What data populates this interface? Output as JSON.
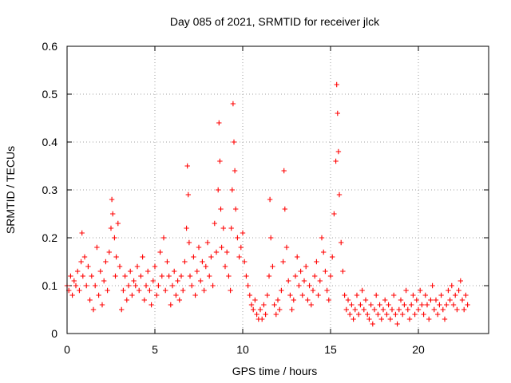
{
  "chart_data": {
    "type": "scatter",
    "title": "Day 085 of 2021, SRMTID for receiver jlck",
    "xlabel": "GPS time / hours",
    "ylabel": "SRMTID / TECUs",
    "xlim": [
      0,
      24
    ],
    "ylim": [
      0,
      0.6
    ],
    "xticks": [
      0,
      5,
      10,
      15,
      20
    ],
    "xtick_labels": [
      "0",
      "5",
      "10",
      "15",
      "20"
    ],
    "yticks": [
      0,
      0.1,
      0.2,
      0.3,
      0.4,
      0.5,
      0.6
    ],
    "ytick_labels": [
      "0",
      "0.1",
      "0.2",
      "0.3",
      "0.4",
      "0.5",
      "0.6"
    ],
    "grid": true,
    "marker": "+",
    "color": "#ff0000",
    "series": [
      {
        "name": "SRMTID",
        "points": [
          [
            0.0,
            0.1
          ],
          [
            0.1,
            0.09
          ],
          [
            0.2,
            0.12
          ],
          [
            0.3,
            0.08
          ],
          [
            0.4,
            0.11
          ],
          [
            0.5,
            0.1
          ],
          [
            0.6,
            0.13
          ],
          [
            0.7,
            0.09
          ],
          [
            0.8,
            0.15
          ],
          [
            0.85,
            0.21
          ],
          [
            0.9,
            0.12
          ],
          [
            1.0,
            0.16
          ],
          [
            1.1,
            0.1
          ],
          [
            1.2,
            0.14
          ],
          [
            1.3,
            0.07
          ],
          [
            1.4,
            0.12
          ],
          [
            1.5,
            0.05
          ],
          [
            1.6,
            0.1
          ],
          [
            1.7,
            0.18
          ],
          [
            1.8,
            0.08
          ],
          [
            1.9,
            0.13
          ],
          [
            2.0,
            0.06
          ],
          [
            2.1,
            0.11
          ],
          [
            2.2,
            0.15
          ],
          [
            2.3,
            0.09
          ],
          [
            2.4,
            0.17
          ],
          [
            2.5,
            0.22
          ],
          [
            2.55,
            0.28
          ],
          [
            2.6,
            0.25
          ],
          [
            2.7,
            0.2
          ],
          [
            2.75,
            0.12
          ],
          [
            2.8,
            0.16
          ],
          [
            2.9,
            0.23
          ],
          [
            3.0,
            0.14
          ],
          [
            3.1,
            0.05
          ],
          [
            3.2,
            0.09
          ],
          [
            3.3,
            0.12
          ],
          [
            3.4,
            0.07
          ],
          [
            3.5,
            0.1
          ],
          [
            3.6,
            0.13
          ],
          [
            3.7,
            0.08
          ],
          [
            3.8,
            0.11
          ],
          [
            3.9,
            0.1
          ],
          [
            4.0,
            0.14
          ],
          [
            4.1,
            0.09
          ],
          [
            4.2,
            0.12
          ],
          [
            4.3,
            0.16
          ],
          [
            4.4,
            0.07
          ],
          [
            4.5,
            0.1
          ],
          [
            4.6,
            0.13
          ],
          [
            4.7,
            0.09
          ],
          [
            4.8,
            0.06
          ],
          [
            4.9,
            0.11
          ],
          [
            5.0,
            0.14
          ],
          [
            5.1,
            0.08
          ],
          [
            5.2,
            0.1
          ],
          [
            5.3,
            0.17
          ],
          [
            5.4,
            0.12
          ],
          [
            5.5,
            0.2
          ],
          [
            5.6,
            0.09
          ],
          [
            5.7,
            0.15
          ],
          [
            5.8,
            0.12
          ],
          [
            5.9,
            0.06
          ],
          [
            6.0,
            0.1
          ],
          [
            6.1,
            0.13
          ],
          [
            6.2,
            0.08
          ],
          [
            6.3,
            0.11
          ],
          [
            6.4,
            0.07
          ],
          [
            6.5,
            0.12
          ],
          [
            6.6,
            0.09
          ],
          [
            6.7,
            0.15
          ],
          [
            6.8,
            0.22
          ],
          [
            6.85,
            0.35
          ],
          [
            6.9,
            0.29
          ],
          [
            6.95,
            0.19
          ],
          [
            7.0,
            0.12
          ],
          [
            7.1,
            0.1
          ],
          [
            7.2,
            0.16
          ],
          [
            7.3,
            0.08
          ],
          [
            7.4,
            0.13
          ],
          [
            7.5,
            0.18
          ],
          [
            7.6,
            0.11
          ],
          [
            7.7,
            0.15
          ],
          [
            7.8,
            0.09
          ],
          [
            7.9,
            0.14
          ],
          [
            8.0,
            0.19
          ],
          [
            8.1,
            0.12
          ],
          [
            8.2,
            0.16
          ],
          [
            8.3,
            0.1
          ],
          [
            8.4,
            0.23
          ],
          [
            8.5,
            0.17
          ],
          [
            8.6,
            0.3
          ],
          [
            8.65,
            0.44
          ],
          [
            8.7,
            0.36
          ],
          [
            8.75,
            0.26
          ],
          [
            8.8,
            0.18
          ],
          [
            8.9,
            0.22
          ],
          [
            9.0,
            0.14
          ],
          [
            9.1,
            0.17
          ],
          [
            9.2,
            0.12
          ],
          [
            9.3,
            0.09
          ],
          [
            9.35,
            0.22
          ],
          [
            9.4,
            0.3
          ],
          [
            9.45,
            0.48
          ],
          [
            9.5,
            0.4
          ],
          [
            9.55,
            0.34
          ],
          [
            9.6,
            0.26
          ],
          [
            9.7,
            0.2
          ],
          [
            9.8,
            0.16
          ],
          [
            9.9,
            0.18
          ],
          [
            10.0,
            0.21
          ],
          [
            10.1,
            0.15
          ],
          [
            10.2,
            0.12
          ],
          [
            10.3,
            0.1
          ],
          [
            10.4,
            0.08
          ],
          [
            10.5,
            0.06
          ],
          [
            10.6,
            0.05
          ],
          [
            10.7,
            0.07
          ],
          [
            10.8,
            0.04
          ],
          [
            10.9,
            0.03
          ],
          [
            11.0,
            0.05
          ],
          [
            11.1,
            0.03
          ],
          [
            11.2,
            0.06
          ],
          [
            11.3,
            0.04
          ],
          [
            11.4,
            0.08
          ],
          [
            11.5,
            0.12
          ],
          [
            11.55,
            0.28
          ],
          [
            11.6,
            0.2
          ],
          [
            11.7,
            0.14
          ],
          [
            11.8,
            0.06
          ],
          [
            11.9,
            0.04
          ],
          [
            12.0,
            0.07
          ],
          [
            12.1,
            0.05
          ],
          [
            12.2,
            0.09
          ],
          [
            12.3,
            0.15
          ],
          [
            12.35,
            0.34
          ],
          [
            12.4,
            0.26
          ],
          [
            12.5,
            0.18
          ],
          [
            12.6,
            0.11
          ],
          [
            12.7,
            0.08
          ],
          [
            12.8,
            0.05
          ],
          [
            12.9,
            0.07
          ],
          [
            13.0,
            0.12
          ],
          [
            13.1,
            0.16
          ],
          [
            13.2,
            0.1
          ],
          [
            13.3,
            0.13
          ],
          [
            13.4,
            0.08
          ],
          [
            13.5,
            0.11
          ],
          [
            13.6,
            0.14
          ],
          [
            13.7,
            0.07
          ],
          [
            13.8,
            0.1
          ],
          [
            13.9,
            0.06
          ],
          [
            14.0,
            0.09
          ],
          [
            14.1,
            0.12
          ],
          [
            14.2,
            0.15
          ],
          [
            14.3,
            0.08
          ],
          [
            14.4,
            0.11
          ],
          [
            14.5,
            0.2
          ],
          [
            14.6,
            0.17
          ],
          [
            14.7,
            0.13
          ],
          [
            14.8,
            0.09
          ],
          [
            14.9,
            0.07
          ],
          [
            15.0,
            0.12
          ],
          [
            15.1,
            0.16
          ],
          [
            15.2,
            0.25
          ],
          [
            15.3,
            0.36
          ],
          [
            15.35,
            0.52
          ],
          [
            15.4,
            0.46
          ],
          [
            15.45,
            0.38
          ],
          [
            15.5,
            0.29
          ],
          [
            15.6,
            0.19
          ],
          [
            15.7,
            0.13
          ],
          [
            15.8,
            0.08
          ],
          [
            15.9,
            0.05
          ],
          [
            16.0,
            0.07
          ],
          [
            16.1,
            0.04
          ],
          [
            16.2,
            0.06
          ],
          [
            16.3,
            0.03
          ],
          [
            16.4,
            0.05
          ],
          [
            16.5,
            0.08
          ],
          [
            16.6,
            0.04
          ],
          [
            16.7,
            0.06
          ],
          [
            16.8,
            0.09
          ],
          [
            16.9,
            0.05
          ],
          [
            17.0,
            0.07
          ],
          [
            17.1,
            0.04
          ],
          [
            17.2,
            0.03
          ],
          [
            17.3,
            0.06
          ],
          [
            17.4,
            0.02
          ],
          [
            17.5,
            0.05
          ],
          [
            17.6,
            0.08
          ],
          [
            17.7,
            0.04
          ],
          [
            17.8,
            0.06
          ],
          [
            17.9,
            0.03
          ],
          [
            18.0,
            0.05
          ],
          [
            18.1,
            0.07
          ],
          [
            18.2,
            0.04
          ],
          [
            18.3,
            0.06
          ],
          [
            18.4,
            0.03
          ],
          [
            18.5,
            0.05
          ],
          [
            18.6,
            0.08
          ],
          [
            18.7,
            0.04
          ],
          [
            18.8,
            0.02
          ],
          [
            18.9,
            0.05
          ],
          [
            19.0,
            0.07
          ],
          [
            19.1,
            0.04
          ],
          [
            19.2,
            0.06
          ],
          [
            19.3,
            0.09
          ],
          [
            19.4,
            0.05
          ],
          [
            19.5,
            0.03
          ],
          [
            19.6,
            0.06
          ],
          [
            19.7,
            0.08
          ],
          [
            19.8,
            0.04
          ],
          [
            19.9,
            0.07
          ],
          [
            20.0,
            0.05
          ],
          [
            20.1,
            0.09
          ],
          [
            20.2,
            0.06
          ],
          [
            20.3,
            0.04
          ],
          [
            20.4,
            0.08
          ],
          [
            20.5,
            0.06
          ],
          [
            20.6,
            0.03
          ],
          [
            20.7,
            0.07
          ],
          [
            20.8,
            0.1
          ],
          [
            20.9,
            0.05
          ],
          [
            21.0,
            0.07
          ],
          [
            21.1,
            0.04
          ],
          [
            21.2,
            0.06
          ],
          [
            21.3,
            0.08
          ],
          [
            21.4,
            0.05
          ],
          [
            21.5,
            0.03
          ],
          [
            21.6,
            0.06
          ],
          [
            21.7,
            0.09
          ],
          [
            21.8,
            0.07
          ],
          [
            21.9,
            0.1
          ],
          [
            22.0,
            0.06
          ],
          [
            22.1,
            0.08
          ],
          [
            22.2,
            0.05
          ],
          [
            22.3,
            0.09
          ],
          [
            22.4,
            0.11
          ],
          [
            22.5,
            0.07
          ],
          [
            22.6,
            0.05
          ],
          [
            22.7,
            0.08
          ],
          [
            22.8,
            0.06
          ]
        ]
      }
    ]
  }
}
